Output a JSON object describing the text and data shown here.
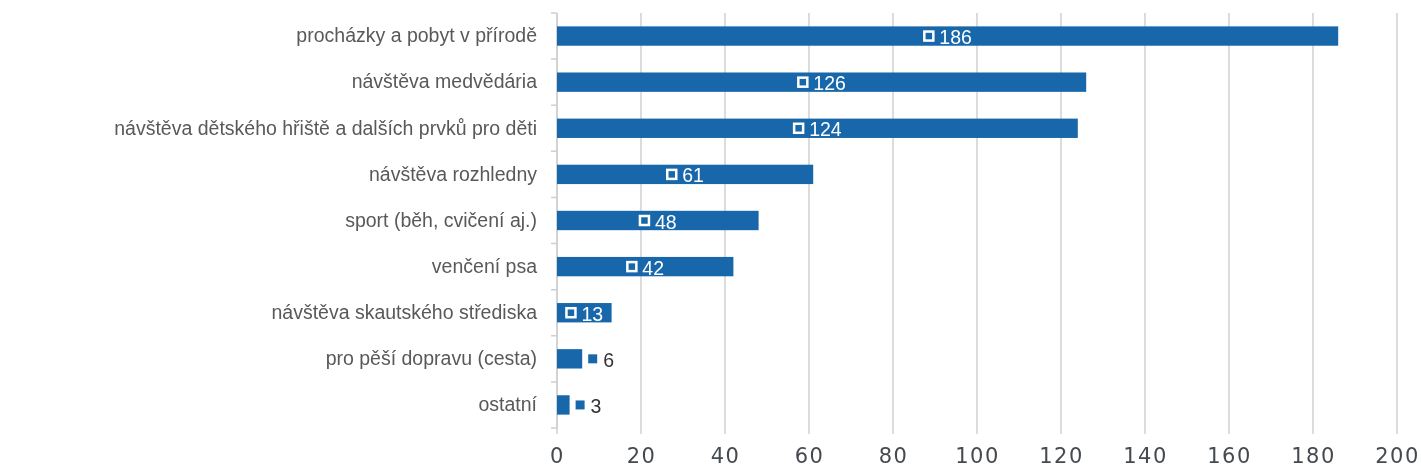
{
  "chart_data": {
    "type": "bar",
    "orientation": "horizontal",
    "categories": [
      "procházky a pobyt v přírodě",
      "návštěva medvědária",
      "návštěva dětského hřiště a dalších prvků pro děti",
      "návštěva rozhledny",
      "sport (běh, cvičení aj.)",
      "venčení psa",
      "návštěva skautského střediska",
      "pro pěší dopravu (cesta)",
      "ostatní"
    ],
    "values": [
      186,
      126,
      124,
      61,
      48,
      42,
      13,
      6,
      3
    ],
    "color": "#1967ab",
    "xlim": [
      0,
      200
    ],
    "xticks": [
      0,
      20,
      40,
      60,
      80,
      100,
      120,
      140,
      160,
      180,
      200
    ],
    "grid": "x",
    "data_labels": true
  }
}
